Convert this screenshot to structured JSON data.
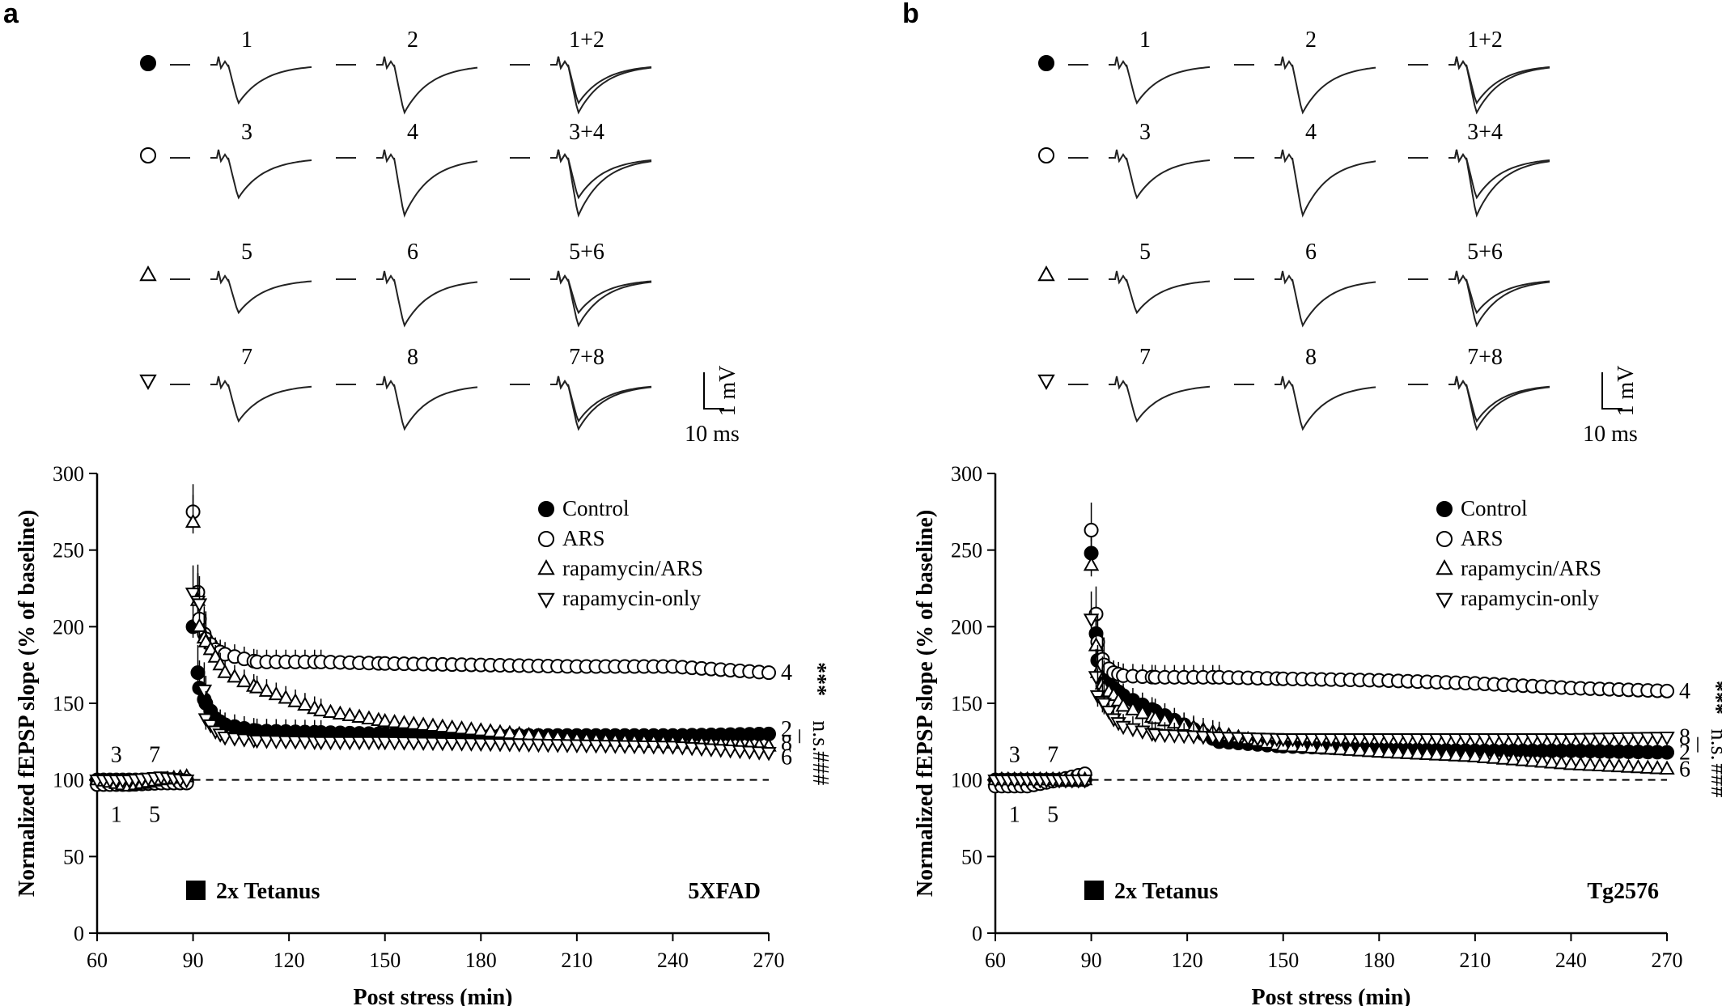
{
  "panels": [
    {
      "letter": "a",
      "model": "5XFAD",
      "tetanus_label": "2x Tetanus",
      "trace_labels": [
        [
          "1",
          "2",
          "1+2"
        ],
        [
          "3",
          "4",
          "3+4"
        ],
        [
          "5",
          "6",
          "5+6"
        ],
        [
          "7",
          "8",
          "7+8"
        ]
      ],
      "scale_bar": {
        "v": "1 mV",
        "t": "10 ms"
      },
      "bottom_trace_labels": [
        {
          "t": "3",
          "pos": "top"
        },
        {
          "t": "7",
          "pos": "top"
        },
        {
          "t": "1",
          "pos": "bottom"
        },
        {
          "t": "5",
          "pos": "bottom"
        }
      ],
      "end_labels": [
        {
          "text": "4",
          "y": 170
        },
        {
          "text": "2",
          "y": 133
        },
        {
          "text": "8",
          "y": 124
        },
        {
          "text": "6",
          "y": 115
        }
      ],
      "stats": {
        "top": "***",
        "mid": "n.s.",
        "bottom": "###"
      }
    },
    {
      "letter": "b",
      "model": "Tg2576",
      "tetanus_label": "2x Tetanus",
      "trace_labels": [
        [
          "1",
          "2",
          "1+2"
        ],
        [
          "3",
          "4",
          "3+4"
        ],
        [
          "5",
          "6",
          "5+6"
        ],
        [
          "7",
          "8",
          "7+8"
        ]
      ],
      "scale_bar": {
        "v": "1 mV",
        "t": "10 ms"
      },
      "bottom_trace_labels": [
        {
          "t": "3",
          "pos": "top"
        },
        {
          "t": "7",
          "pos": "top"
        },
        {
          "t": "1",
          "pos": "bottom"
        },
        {
          "t": "5",
          "pos": "bottom"
        }
      ],
      "end_labels": [
        {
          "text": "4",
          "y": 158
        },
        {
          "text": "8",
          "y": 128
        },
        {
          "text": "2",
          "y": 118
        },
        {
          "text": "6",
          "y": 107
        }
      ],
      "stats": {
        "top": "***",
        "mid": "n.s.",
        "bottom": "###"
      }
    }
  ],
  "legend": [
    {
      "marker": "filled-circle",
      "label": "Control"
    },
    {
      "marker": "open-circle",
      "label": "ARS"
    },
    {
      "marker": "up-triangle",
      "label": "rapamycin/ARS"
    },
    {
      "marker": "down-triangle",
      "label": "rapamycin-only"
    }
  ],
  "chart_data": [
    {
      "type": "scatter",
      "title": "5XFAD",
      "xlabel": "Post stress (min)",
      "ylabel": "Normalized fEPSP slope (% of baseline)",
      "xlim": [
        60,
        270
      ],
      "ylim": [
        0,
        300
      ],
      "xticks": [
        60,
        90,
        120,
        150,
        180,
        210,
        240,
        270
      ],
      "yticks": [
        0,
        50,
        100,
        150,
        200,
        250,
        300
      ],
      "baseline": 100,
      "series": [
        {
          "name": "Control",
          "marker": "filled-circle",
          "points": [
            [
              60,
              100
            ],
            [
              70,
              100
            ],
            [
              80,
              100
            ],
            [
              88,
              100
            ],
            [
              90,
              200
            ],
            [
              92,
              160
            ],
            [
              94,
              150
            ],
            [
              97,
              140
            ],
            [
              100,
              136
            ],
            [
              110,
              132
            ],
            [
              130,
              131
            ],
            [
              150,
              130
            ],
            [
              180,
              129
            ],
            [
              210,
              129
            ],
            [
              240,
              129
            ],
            [
              270,
              130
            ]
          ]
        },
        {
          "name": "ARS",
          "marker": "open-circle",
          "points": [
            [
              60,
              97
            ],
            [
              70,
              97
            ],
            [
              80,
              98
            ],
            [
              88,
              98
            ],
            [
              90,
              275
            ],
            [
              92,
              205
            ],
            [
              94,
              192
            ],
            [
              97,
              185
            ],
            [
              100,
              182
            ],
            [
              110,
              177
            ],
            [
              130,
              177
            ],
            [
              150,
              176
            ],
            [
              180,
              175
            ],
            [
              210,
              174
            ],
            [
              240,
              174
            ],
            [
              270,
              170
            ]
          ]
        },
        {
          "name": "rapamycin/ARS",
          "marker": "up-triangle",
          "points": [
            [
              60,
              100
            ],
            [
              70,
              96
            ],
            [
              80,
              100
            ],
            [
              88,
              102
            ],
            [
              90,
              268
            ],
            [
              92,
              200
            ],
            [
              94,
              190
            ],
            [
              97,
              180
            ],
            [
              100,
              170
            ],
            [
              110,
              160
            ],
            [
              130,
              145
            ],
            [
              150,
              138
            ],
            [
              180,
              132
            ],
            [
              210,
              126
            ],
            [
              240,
              124
            ],
            [
              270,
              122
            ]
          ]
        },
        {
          "name": "rapamycin-only",
          "marker": "down-triangle",
          "points": [
            [
              60,
              100
            ],
            [
              70,
              100
            ],
            [
              80,
              102
            ],
            [
              88,
              100
            ],
            [
              90,
              222
            ],
            [
              92,
              215
            ],
            [
              94,
              140
            ],
            [
              97,
              132
            ],
            [
              100,
              128
            ],
            [
              110,
              126
            ],
            [
              130,
              125
            ],
            [
              150,
              125
            ],
            [
              180,
              124
            ],
            [
              210,
              123
            ],
            [
              240,
              122
            ],
            [
              270,
              118
            ]
          ]
        }
      ]
    },
    {
      "type": "scatter",
      "title": "Tg2576",
      "xlabel": "Post stress (min)",
      "ylabel": "Normalized fEPSP slope (% of baseline)",
      "xlim": [
        60,
        270
      ],
      "ylim": [
        0,
        300
      ],
      "xticks": [
        60,
        90,
        120,
        150,
        180,
        210,
        240,
        270
      ],
      "yticks": [
        0,
        50,
        100,
        150,
        200,
        250,
        300
      ],
      "baseline": 100,
      "series": [
        {
          "name": "Control",
          "marker": "filled-circle",
          "points": [
            [
              60,
              100
            ],
            [
              70,
              100
            ],
            [
              80,
              100
            ],
            [
              88,
              100
            ],
            [
              90,
              248
            ],
            [
              92,
              178
            ],
            [
              94,
              165
            ],
            [
              97,
              160
            ],
            [
              100,
              155
            ],
            [
              110,
              145
            ],
            [
              130,
              125
            ],
            [
              150,
              122
            ],
            [
              180,
              120
            ],
            [
              210,
              119
            ],
            [
              240,
              119
            ],
            [
              270,
              118
            ]
          ]
        },
        {
          "name": "ARS",
          "marker": "open-circle",
          "points": [
            [
              60,
              96
            ],
            [
              70,
              96
            ],
            [
              80,
              100
            ],
            [
              88,
              104
            ],
            [
              90,
              263
            ],
            [
              92,
              190
            ],
            [
              94,
              175
            ],
            [
              97,
              170
            ],
            [
              100,
              168
            ],
            [
              110,
              167
            ],
            [
              130,
              167
            ],
            [
              150,
              166
            ],
            [
              180,
              165
            ],
            [
              210,
              163
            ],
            [
              240,
              160
            ],
            [
              270,
              158
            ]
          ]
        },
        {
          "name": "rapamycin/ARS",
          "marker": "up-triangle",
          "points": [
            [
              60,
              100
            ],
            [
              70,
              100
            ],
            [
              80,
              100
            ],
            [
              88,
              100
            ],
            [
              90,
              240
            ],
            [
              92,
              170
            ],
            [
              94,
              160
            ],
            [
              97,
              155
            ],
            [
              100,
              148
            ],
            [
              110,
              140
            ],
            [
              130,
              130
            ],
            [
              150,
              122
            ],
            [
              180,
              118
            ],
            [
              210,
              115
            ],
            [
              240,
              110
            ],
            [
              270,
              107
            ]
          ]
        },
        {
          "name": "rapamycin-only",
          "marker": "down-triangle",
          "points": [
            [
              60,
              100
            ],
            [
              70,
              100
            ],
            [
              80,
              100
            ],
            [
              88,
              100
            ],
            [
              90,
              205
            ],
            [
              92,
              155
            ],
            [
              94,
              150
            ],
            [
              97,
              140
            ],
            [
              100,
              135
            ],
            [
              110,
              130
            ],
            [
              130,
              128
            ],
            [
              150,
              127
            ],
            [
              180,
              127
            ],
            [
              210,
              127
            ],
            [
              240,
              127
            ],
            [
              270,
              128
            ]
          ]
        }
      ]
    }
  ]
}
